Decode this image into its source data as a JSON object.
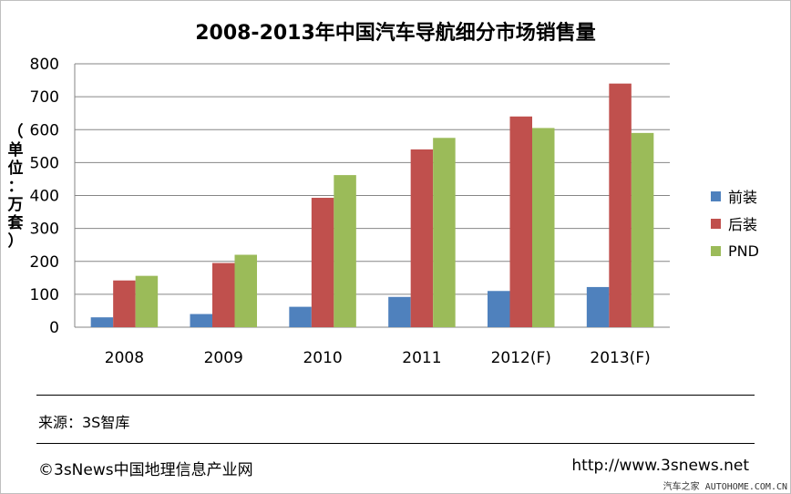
{
  "chart_data": {
    "type": "bar",
    "title": "2008-2013年中国汽车导航细分市场销售量",
    "ylabel": "（单位：万套）",
    "ylim": [
      0,
      800
    ],
    "yticks": [
      0,
      100,
      200,
      300,
      400,
      500,
      600,
      700,
      800
    ],
    "categories": [
      "2008",
      "2009",
      "2010",
      "2011",
      "2012(F)",
      "2013(F)"
    ],
    "series": [
      {
        "name": "前装",
        "color": "#4f81bd",
        "values": [
          30,
          40,
          62,
          92,
          110,
          122
        ]
      },
      {
        "name": "后装",
        "color": "#c0504d",
        "values": [
          142,
          195,
          393,
          540,
          640,
          740
        ]
      },
      {
        "name": "PND",
        "color": "#9bbb59",
        "values": [
          156,
          220,
          462,
          575,
          605,
          590
        ]
      }
    ],
    "grid": true,
    "legend_position": "right"
  },
  "ylabel_chars": [
    "（",
    "单",
    "位",
    "：",
    "万",
    "套",
    "）"
  ],
  "source": "来源：3S智库",
  "footer": {
    "left": "©3sNews中国地理信息产业网",
    "right": "http://www.3snews.net"
  },
  "watermark": "汽车之家 AUTOHOME.COM.CN"
}
